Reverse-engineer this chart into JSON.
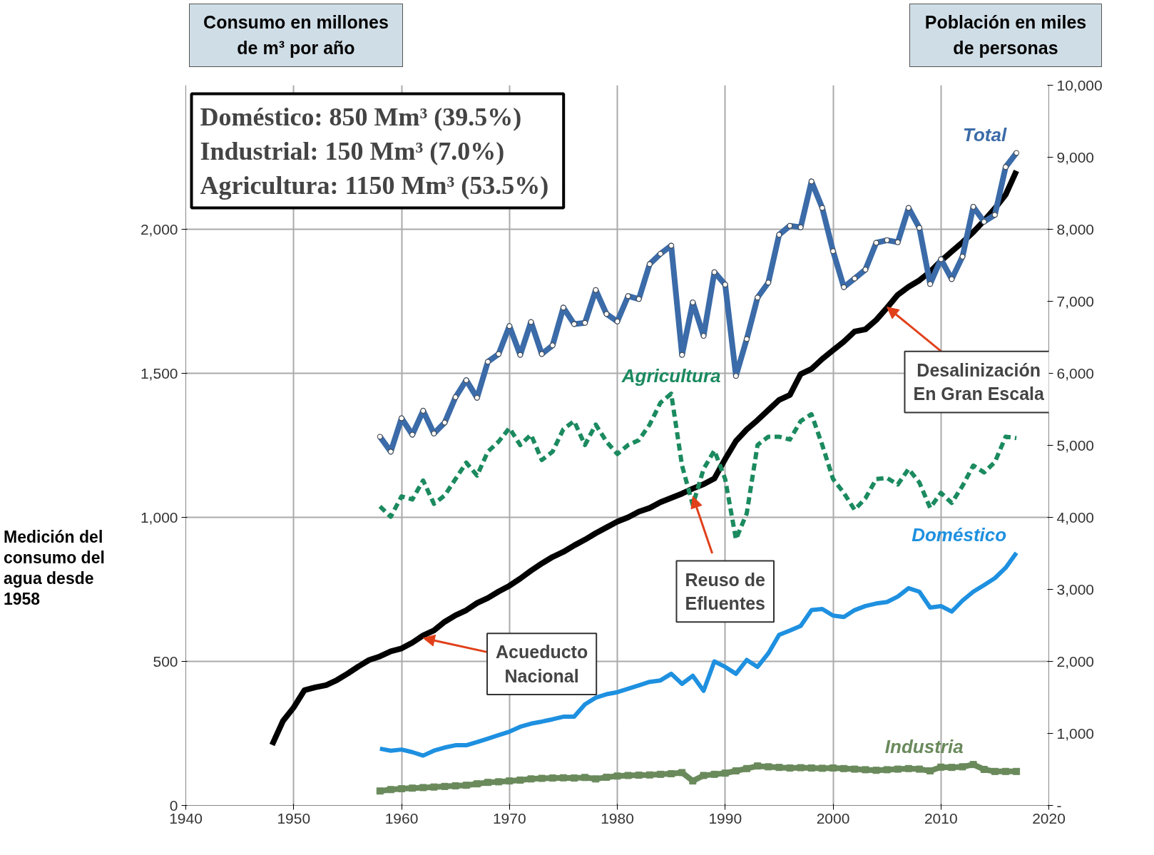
{
  "chart_data": {
    "type": "line",
    "ylabel": "Consumo en millones de m³ por año",
    "y2label": "Población en miles de personas",
    "x": [
      1958,
      1959,
      1960,
      1961,
      1962,
      1963,
      1964,
      1965,
      1966,
      1967,
      1968,
      1969,
      1970,
      1971,
      1972,
      1973,
      1974,
      1975,
      1976,
      1977,
      1978,
      1979,
      1980,
      1981,
      1982,
      1983,
      1984,
      1985,
      1986,
      1987,
      1988,
      1989,
      1990,
      1991,
      1992,
      1993,
      1994,
      1995,
      1996,
      1997,
      1998,
      1999,
      2000,
      2001,
      2002,
      2003,
      2004,
      2005,
      2006,
      2007,
      2008,
      2009,
      2010,
      2011,
      2012,
      2013,
      2014,
      2015,
      2016,
      2017
    ],
    "series": [
      {
        "name": "Total",
        "color": "#3b6ba8",
        "marker": "circle",
        "line_style": "solid",
        "values": [
          1280,
          1228,
          1344,
          1287,
          1370,
          1291,
          1329,
          1417,
          1476,
          1415,
          1540,
          1567,
          1664,
          1564,
          1678,
          1567,
          1597,
          1728,
          1671,
          1675,
          1789,
          1706,
          1680,
          1768,
          1758,
          1879,
          1915,
          1943,
          1564,
          1746,
          1630,
          1851,
          1808,
          1491,
          1619,
          1763,
          1815,
          1981,
          2012,
          2007,
          2166,
          2074,
          1924,
          1799,
          1829,
          1860,
          1953,
          1962,
          1955,
          2074,
          2005,
          1810,
          1896,
          1827,
          1905,
          2078,
          2026,
          2050,
          2216,
          2265
        ]
      },
      {
        "name": "Agricultura",
        "color": "#1b8a5f",
        "marker": "none",
        "line_style": "dashed",
        "values": [
          1038,
          1002,
          1073,
          1062,
          1128,
          1047,
          1076,
          1133,
          1190,
          1145,
          1228,
          1263,
          1310,
          1251,
          1287,
          1199,
          1228,
          1306,
          1334,
          1251,
          1322,
          1263,
          1220,
          1251,
          1268,
          1322,
          1398,
          1429,
          1180,
          1043,
          1168,
          1232,
          1133,
          924,
          1014,
          1251,
          1280,
          1280,
          1270,
          1334,
          1358,
          1251,
          1133,
          1085,
          1026,
          1066,
          1133,
          1137,
          1114,
          1168,
          1121,
          1033,
          1085,
          1050,
          1109,
          1180,
          1156,
          1192,
          1280,
          1275
        ]
      },
      {
        "name": "Doméstico",
        "color": "#1e90e0",
        "marker": "none",
        "line_style": "solid",
        "values": [
          197,
          190,
          194,
          185,
          173,
          190,
          201,
          209,
          209,
          220,
          232,
          244,
          256,
          273,
          284,
          291,
          299,
          308,
          308,
          351,
          374,
          386,
          393,
          405,
          417,
          429,
          434,
          457,
          422,
          450,
          398,
          500,
          481,
          457,
          505,
          481,
          528,
          592,
          607,
          623,
          678,
          682,
          659,
          654,
          678,
          692,
          701,
          706,
          725,
          754,
          742,
          687,
          692,
          673,
          711,
          742,
          765,
          789,
          825,
          877
        ]
      },
      {
        "name": "Industria",
        "color": "#6a8a5c",
        "marker": "square",
        "line_style": "solid",
        "values": [
          50,
          55,
          58,
          60,
          62,
          64,
          66,
          68,
          70,
          75,
          80,
          82,
          85,
          88,
          92,
          94,
          95,
          96,
          95,
          97,
          92,
          98,
          102,
          104,
          105,
          106,
          108,
          110,
          114,
          85,
          104,
          108,
          112,
          120,
          128,
          137,
          134,
          132,
          130,
          131,
          130,
          129,
          130,
          128,
          126,
          124,
          122,
          124,
          126,
          128,
          126,
          120,
          133,
          132,
          134,
          142,
          125,
          118,
          118,
          118
        ]
      },
      {
        "color": "#000000",
        "marker": "none",
        "line_style": "solid",
        "axis": "y2",
        "x": [
          1948,
          1949,
          1950,
          1951,
          1952,
          1953,
          1954,
          1955,
          1956,
          1957,
          1958,
          1959,
          1960,
          1961,
          1962,
          1963,
          1964,
          1965,
          1966,
          1967,
          1968,
          1969,
          1970,
          1971,
          1972,
          1973,
          1974,
          1975,
          1976,
          1977,
          1978,
          1979,
          1980,
          1981,
          1982,
          1983,
          1984,
          1985,
          1986,
          1987,
          1988,
          1989,
          1990,
          1991,
          1992,
          1993,
          1994,
          1995,
          1996,
          1997,
          1998,
          1999,
          2000,
          2001,
          2002,
          2003,
          2004,
          2005,
          2006,
          2007,
          2008,
          2009,
          2010,
          2011,
          2012,
          2013,
          2014,
          2015,
          2016,
          2017
        ],
        "values": [
          840,
          1170,
          1360,
          1600,
          1640,
          1670,
          1740,
          1830,
          1930,
          2020,
          2070,
          2140,
          2180,
          2260,
          2360,
          2430,
          2550,
          2640,
          2710,
          2810,
          2880,
          2970,
          3050,
          3150,
          3260,
          3360,
          3450,
          3520,
          3610,
          3690,
          3780,
          3860,
          3940,
          4000,
          4080,
          4130,
          4210,
          4270,
          4330,
          4400,
          4460,
          4540,
          4810,
          5060,
          5220,
          5350,
          5490,
          5630,
          5700,
          5990,
          6060,
          6200,
          6320,
          6440,
          6580,
          6610,
          6740,
          6910,
          7090,
          7200,
          7290,
          7410,
          7560,
          7690,
          7820,
          7960,
          8120,
          8290,
          8480,
          8810
        ]
      }
    ],
    "xlim": [
      1940,
      2020
    ],
    "xticks": [
      1940,
      1950,
      1960,
      1970,
      1980,
      1990,
      2000,
      2010,
      2020
    ],
    "ylim": [
      0,
      2500
    ],
    "yticks": [
      0,
      {
        "value": 500,
        "label": "500"
      },
      {
        "value": 1000,
        "label": "1,000"
      },
      {
        "value": 1500,
        "label": "1,500"
      },
      {
        "value": 2000,
        "label": "2,000"
      }
    ],
    "y2lim": [
      0,
      10000
    ],
    "y2ticks": [
      {
        "value": 0,
        "label": "-"
      },
      {
        "value": 1000,
        "label": "1,000"
      },
      {
        "value": 2000,
        "label": "2,000"
      },
      {
        "value": 3000,
        "label": "3,000"
      },
      {
        "value": 4000,
        "label": "4,000"
      },
      {
        "value": 5000,
        "label": "5,000"
      },
      {
        "value": 6000,
        "label": "6,000"
      },
      {
        "value": 7000,
        "label": "7,000"
      },
      {
        "value": 8000,
        "label": "8,000"
      },
      {
        "value": 9000,
        "label": "9,000"
      },
      {
        "value": 10000,
        "label": "10,000"
      }
    ],
    "grid": true,
    "annotations": [
      "Doméstico:      850 Mm³ (39.5%)",
      "Industrial:      150 Mm³ (7.0%)",
      "Agricultura:  1150 Mm³ (53.5%)",
      "Medición del consumo del agua desde 1958",
      {
        "text": "Acueducto Nacional",
        "x": 1962,
        "y": 581
      },
      {
        "text": "Reuso de Efluentes",
        "x": 1987,
        "y": 1073
      },
      {
        "text": "Desalinización En Gran Escala",
        "x": 2005,
        "y": 1730
      }
    ]
  }
}
